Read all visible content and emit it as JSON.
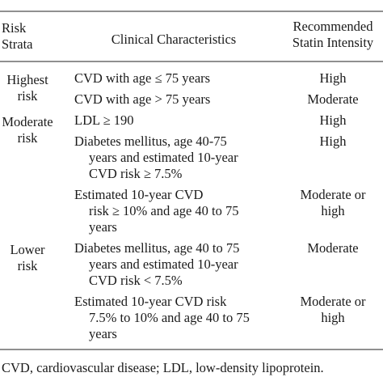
{
  "table": {
    "header": {
      "strata": [
        "Risk",
        "Strata"
      ],
      "characteristics": [
        "Clinical Characteristics"
      ],
      "intensity": [
        "Recommended",
        "Statin Intensity"
      ]
    },
    "rows": [
      {
        "strata": [
          "Highest",
          "risk"
        ],
        "items": [
          {
            "characteristics": [
              "CVD with age ≤ 75 years"
            ],
            "intensity": [
              "High"
            ]
          },
          {
            "characteristics": [
              "CVD with age > 75 years"
            ],
            "intensity": [
              "Moderate"
            ]
          }
        ]
      },
      {
        "strata": [
          "Moderate",
          "risk"
        ],
        "items": [
          {
            "characteristics": [
              "LDL ≥ 190"
            ],
            "intensity": [
              "High"
            ]
          },
          {
            "characteristics": [
              "Diabetes mellitus, age 40-75",
              "years and estimated 10-year",
              "CVD risk ≥ 7.5%"
            ],
            "intensity": [
              "High"
            ]
          },
          {
            "characteristics": [
              "Estimated 10-year CVD",
              "risk ≥ 10% and age 40 to 75",
              "years"
            ],
            "intensity": [
              "Moderate or",
              "high"
            ]
          }
        ]
      },
      {
        "strata": [
          "Lower",
          "risk"
        ],
        "items": [
          {
            "characteristics": [
              "Diabetes mellitus, age 40 to 75",
              "years and estimated 10-year",
              "CVD risk < 7.5%"
            ],
            "intensity": [
              "Moderate"
            ]
          },
          {
            "characteristics": [
              "Estimated 10-year CVD risk",
              "7.5% to 10% and age 40 to 75",
              "years"
            ],
            "intensity": [
              "Moderate or",
              "high"
            ]
          }
        ]
      }
    ],
    "footnote": "CVD, cardiovascular disease; LDL, low-density lipoprotein."
  }
}
